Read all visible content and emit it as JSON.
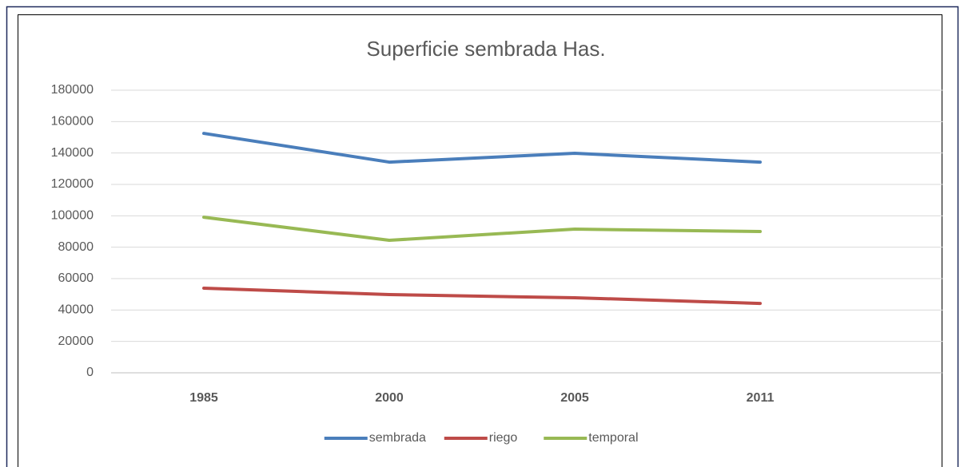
{
  "chart_data": {
    "type": "line",
    "title": "Superficie sembrada Has.",
    "categories": [
      "1985",
      "2000",
      "2005",
      "2011"
    ],
    "series": [
      {
        "name": "sembrada",
        "color": "#4a7ebb",
        "values": [
          152500,
          134200,
          139800,
          134200
        ]
      },
      {
        "name": "riego",
        "color": "#be4b48",
        "values": [
          53900,
          49800,
          47800,
          44200
        ]
      },
      {
        "name": "temporal",
        "color": "#98b954",
        "values": [
          99100,
          84400,
          91500,
          90000
        ]
      }
    ],
    "ylim": [
      0,
      180000
    ],
    "yticks": [
      0,
      20000,
      40000,
      60000,
      80000,
      100000,
      120000,
      140000,
      160000,
      180000
    ],
    "grid": true,
    "legend": "bottom"
  }
}
